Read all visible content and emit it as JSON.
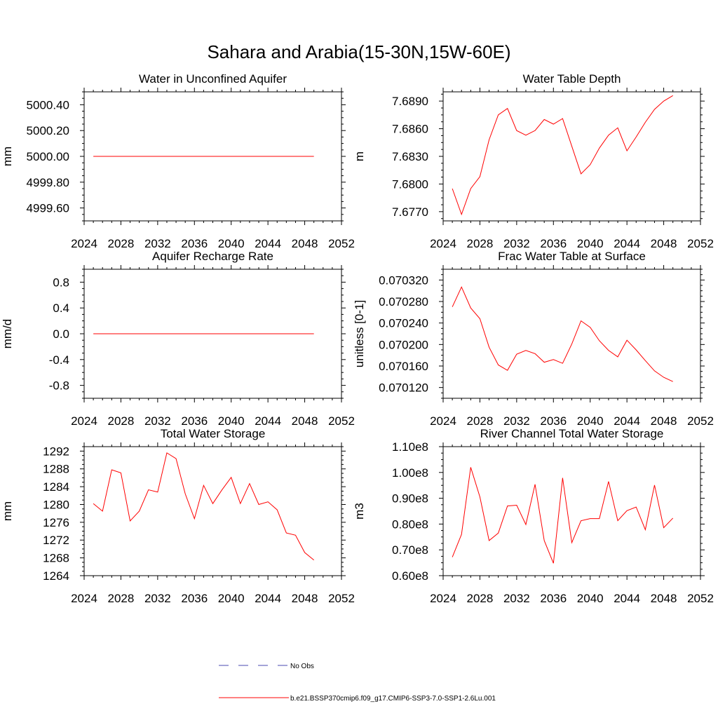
{
  "figure": {
    "title": "Sahara and Arabia(15-30N,15W-60E)"
  },
  "legend": {
    "entries": [
      {
        "label": "No Obs",
        "color": "#4a4ab0",
        "dashed": true
      },
      {
        "label": "b.e21.BSSP370cmip6.f09_g17.CMIP6-SSP3-7.0-SSP1-2.6Lu.001",
        "color": "#ff0000",
        "dashed": false
      }
    ]
  },
  "chart_data": [
    {
      "type": "line",
      "title": "Water in Unconfined Aquifer",
      "ylabel": "mm",
      "xlim": [
        2024,
        2052
      ],
      "ylim": [
        4999.5,
        5000.5
      ],
      "xticks": [
        2024,
        2028,
        2032,
        2036,
        2040,
        2044,
        2048,
        2052
      ],
      "yticks": [
        4999.6,
        4999.8,
        5000.0,
        5000.2,
        5000.4
      ],
      "yticklabels": [
        "4999.60",
        "4999.80",
        "5000.00",
        "5000.20",
        "5000.40"
      ],
      "x": [
        2025,
        2026,
        2027,
        2028,
        2029,
        2030,
        2031,
        2032,
        2033,
        2034,
        2035,
        2036,
        2037,
        2038,
        2039,
        2040,
        2041,
        2042,
        2043,
        2044,
        2045,
        2046,
        2047,
        2048,
        2049
      ],
      "series": [
        {
          "color": "#ff0000",
          "values": [
            5000,
            5000,
            5000,
            5000,
            5000,
            5000,
            5000,
            5000,
            5000,
            5000,
            5000,
            5000,
            5000,
            5000,
            5000,
            5000,
            5000,
            5000,
            5000,
            5000,
            5000,
            5000,
            5000,
            5000,
            5000
          ]
        }
      ]
    },
    {
      "type": "line",
      "title": "Water Table Depth",
      "ylabel": "m",
      "xlim": [
        2024,
        2052
      ],
      "ylim": [
        7.676,
        7.69
      ],
      "xticks": [
        2024,
        2028,
        2032,
        2036,
        2040,
        2044,
        2048,
        2052
      ],
      "yticks": [
        7.677,
        7.68,
        7.683,
        7.686,
        7.689
      ],
      "yticklabels": [
        "7.6770",
        "7.6800",
        "7.6830",
        "7.6860",
        "7.6890"
      ],
      "x": [
        2025,
        2026,
        2027,
        2028,
        2029,
        2030,
        2031,
        2032,
        2033,
        2034,
        2035,
        2036,
        2037,
        2038,
        2039,
        2040,
        2041,
        2042,
        2043,
        2044,
        2045,
        2046,
        2047,
        2048,
        2049
      ],
      "series": [
        {
          "color": "#ff0000",
          "values": [
            7.6795,
            7.6767,
            7.6795,
            7.6808,
            7.6848,
            7.6875,
            7.6882,
            7.6858,
            7.6853,
            7.6858,
            7.687,
            7.6865,
            7.6871,
            7.6841,
            7.6811,
            7.6821,
            7.6839,
            7.6853,
            7.6861,
            7.6836,
            7.6851,
            7.6867,
            7.6881,
            7.689,
            7.6896
          ]
        }
      ]
    },
    {
      "type": "line",
      "title": "Aquifer Recharge Rate",
      "ylabel": "mm/d",
      "xlim": [
        2024,
        2052
      ],
      "ylim": [
        -1.0,
        1.0
      ],
      "xticks": [
        2024,
        2028,
        2032,
        2036,
        2040,
        2044,
        2048,
        2052
      ],
      "yticks": [
        -0.8,
        -0.4,
        0.0,
        0.4,
        0.8
      ],
      "yticklabels": [
        "-0.8",
        "-0.4",
        "0.0",
        "0.4",
        "0.8"
      ],
      "x": [
        2025,
        2026,
        2027,
        2028,
        2029,
        2030,
        2031,
        2032,
        2033,
        2034,
        2035,
        2036,
        2037,
        2038,
        2039,
        2040,
        2041,
        2042,
        2043,
        2044,
        2045,
        2046,
        2047,
        2048,
        2049
      ],
      "series": [
        {
          "color": "#ff0000",
          "values": [
            0,
            0,
            0,
            0,
            0,
            0,
            0,
            0,
            0,
            0,
            0,
            0,
            0,
            0,
            0,
            0,
            0,
            0,
            0,
            0,
            0,
            0,
            0,
            0,
            0
          ]
        }
      ]
    },
    {
      "type": "line",
      "title": "Frac Water Table at Surface",
      "ylabel": "unitless [0-1]",
      "xlim": [
        2024,
        2052
      ],
      "ylim": [
        0.0701,
        0.07034
      ],
      "xticks": [
        2024,
        2028,
        2032,
        2036,
        2040,
        2044,
        2048,
        2052
      ],
      "yticks": [
        0.07012,
        0.07016,
        0.0702,
        0.07024,
        0.07028,
        0.07032
      ],
      "yticklabels": [
        "0.070120",
        "0.070160",
        "0.070200",
        "0.070240",
        "0.070280",
        "0.070320"
      ],
      "x": [
        2025,
        2026,
        2027,
        2028,
        2029,
        2030,
        2031,
        2032,
        2033,
        2034,
        2035,
        2036,
        2037,
        2038,
        2039,
        2040,
        2041,
        2042,
        2043,
        2044,
        2045,
        2046,
        2047,
        2048,
        2049
      ],
      "series": [
        {
          "color": "#ff0000",
          "values": [
            0.07027,
            0.070307,
            0.070268,
            0.070248,
            0.070195,
            0.070162,
            0.070152,
            0.070182,
            0.070189,
            0.070183,
            0.070167,
            0.070172,
            0.070165,
            0.070201,
            0.070244,
            0.070232,
            0.070207,
            0.070189,
            0.070177,
            0.070208,
            0.07019,
            0.07017,
            0.070151,
            0.070139,
            0.070131
          ]
        }
      ]
    },
    {
      "type": "line",
      "title": "Total Water Storage",
      "ylabel": "mm",
      "xlim": [
        2024,
        2052
      ],
      "ylim": [
        1264,
        1293
      ],
      "xticks": [
        2024,
        2028,
        2032,
        2036,
        2040,
        2044,
        2048,
        2052
      ],
      "yticks": [
        1264,
        1268,
        1272,
        1276,
        1280,
        1284,
        1288,
        1292
      ],
      "yticklabels": [
        "1264",
        "1268",
        "1272",
        "1276",
        "1280",
        "1284",
        "1288",
        "1292"
      ],
      "x": [
        2025,
        2026,
        2027,
        2028,
        2029,
        2030,
        2031,
        2032,
        2033,
        2034,
        2035,
        2036,
        2037,
        2038,
        2039,
        2040,
        2041,
        2042,
        2043,
        2044,
        2045,
        2046,
        2047,
        2048,
        2049
      ],
      "series": [
        {
          "color": "#ff0000",
          "values": [
            1280.2,
            1278.5,
            1287.8,
            1287.1,
            1276.3,
            1278.5,
            1283.3,
            1282.8,
            1291.6,
            1290.3,
            1282.4,
            1276.8,
            1284.3,
            1280.2,
            1283.3,
            1286.1,
            1280.2,
            1284.7,
            1280.0,
            1280.6,
            1278.8,
            1273.6,
            1273.1,
            1269.2,
            1267.5
          ]
        }
      ]
    },
    {
      "type": "line",
      "title": "River Channel Total Water Storage",
      "ylabel": "m3",
      "xlim": [
        2024,
        2052
      ],
      "ylim": [
        60000000,
        110000000
      ],
      "xticks": [
        2024,
        2028,
        2032,
        2036,
        2040,
        2044,
        2048,
        2052
      ],
      "yticks": [
        60000000,
        70000000,
        80000000,
        90000000,
        100000000,
        110000000
      ],
      "yticklabels": [
        "0.60e8",
        "0.70e8",
        "0.80e8",
        "0.90e8",
        "1.00e8",
        "1.10e8"
      ],
      "x": [
        2025,
        2026,
        2027,
        2028,
        2029,
        2030,
        2031,
        2032,
        2033,
        2034,
        2035,
        2036,
        2037,
        2038,
        2039,
        2040,
        2041,
        2042,
        2043,
        2044,
        2045,
        2046,
        2047,
        2048,
        2049
      ],
      "series": [
        {
          "color": "#ff0000",
          "values": [
            67200000,
            76000000,
            102000000,
            90500000,
            73600000,
            76500000,
            87000000,
            87300000,
            79800000,
            95400000,
            73600000,
            64800000,
            97900000,
            72800000,
            81300000,
            82100000,
            82100000,
            96500000,
            81300000,
            85200000,
            86600000,
            77800000,
            95100000,
            78600000,
            82300000
          ]
        }
      ]
    }
  ]
}
